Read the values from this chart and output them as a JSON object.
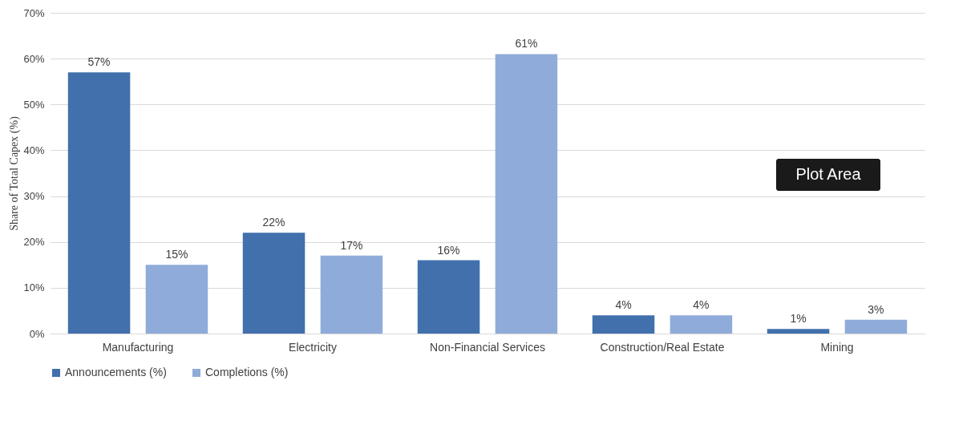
{
  "chart_data": {
    "type": "bar",
    "ylabel": "Share of Total Capex (%)",
    "categories": [
      "Manufacturing",
      "Electricity",
      "Non-Financial Services",
      "Construction/Real Estate",
      "Mining"
    ],
    "series": [
      {
        "name": "Announcements (%)",
        "color": "#4170ad",
        "values": [
          57,
          22,
          16,
          4,
          1
        ],
        "value_labels": [
          "57%",
          "22%",
          "16%",
          "4%",
          "1%"
        ]
      },
      {
        "name": "Completions (%)",
        "color": "#8fabd9",
        "values": [
          15,
          17,
          61,
          4,
          3
        ],
        "value_labels": [
          "15%",
          "17%",
          "61%",
          "4%",
          "3%"
        ]
      }
    ],
    "ylim": [
      0,
      70
    ],
    "yticks": [
      {
        "value": 0,
        "label": "0%"
      },
      {
        "value": 10,
        "label": "10%"
      },
      {
        "value": 20,
        "label": "20%"
      },
      {
        "value": 30,
        "label": "30%"
      },
      {
        "value": 40,
        "label": "40%"
      },
      {
        "value": 50,
        "label": "50%"
      },
      {
        "value": 60,
        "label": "60%"
      },
      {
        "value": 70,
        "label": "70%"
      }
    ],
    "grid": "y",
    "legend": "bottom",
    "annotations": [
      "Plot Area"
    ]
  }
}
